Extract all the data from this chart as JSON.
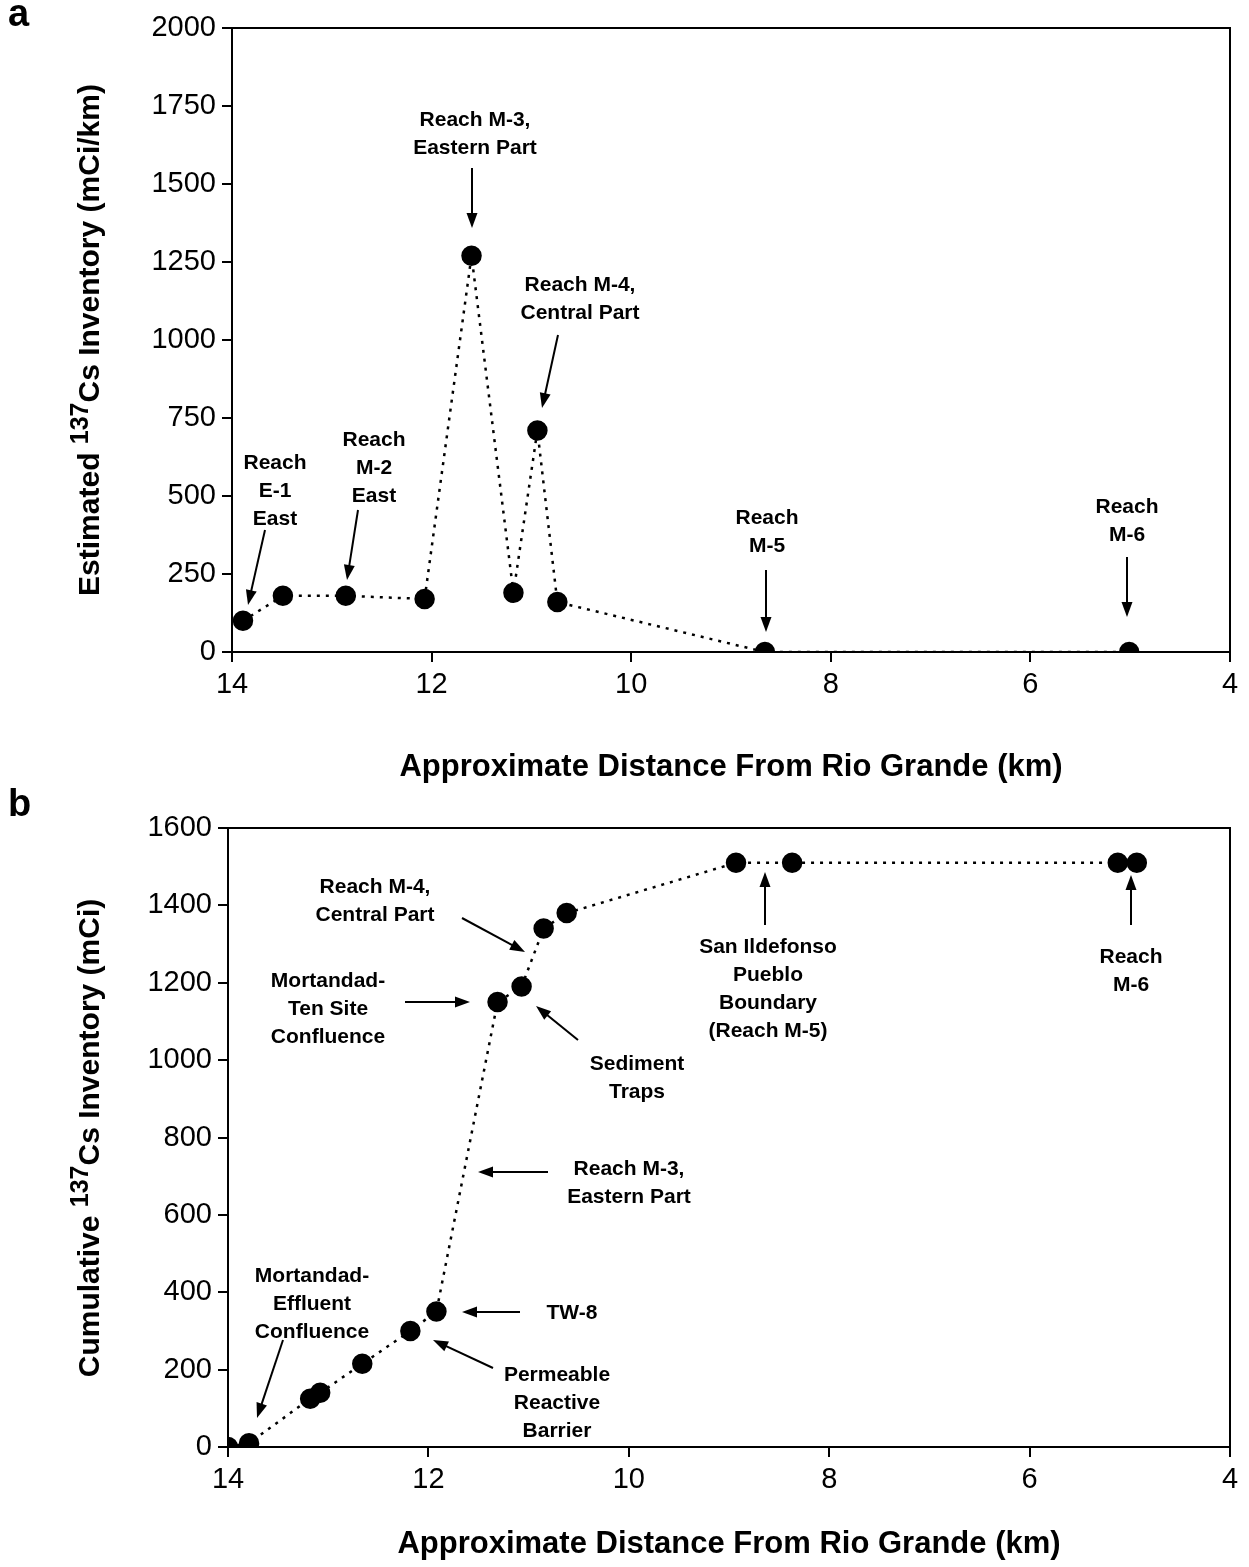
{
  "chart_data": [
    {
      "type": "line",
      "title": "a",
      "xlabel": "Approximate Distance From Rio Grande (km)",
      "ylabel": "Estimated $^{137}$Cs Inventory (mCi/km)",
      "x": [
        13.89,
        13.49,
        12.86,
        12.07,
        11.6,
        11.18,
        10.94,
        10.74,
        8.66,
        5.01
      ],
      "values": [
        100,
        180,
        180,
        170,
        1270,
        190,
        710,
        160,
        0,
        0
      ],
      "color": "#000000",
      "marker": "circle",
      "line_style": "dotted",
      "grid": false,
      "xlim": [
        14,
        4
      ],
      "xticks": [
        14,
        12,
        10,
        8,
        6,
        4
      ],
      "ylim": [
        0,
        2000
      ],
      "yticks": [
        0,
        250,
        500,
        750,
        1000,
        1250,
        1500,
        1750,
        2000
      ],
      "annotations": [
        "Reach\nE-1\nEast",
        "Reach\nM-2\nEast",
        "Reach M-3,\nEastern Part",
        "Reach M-4,\nCentral Part",
        "Reach\nM-5",
        "Reach\nM-6"
      ]
    },
    {
      "type": "line",
      "title": "b",
      "xlabel": "Approximate Distance From Rio Grande (km)",
      "ylabel": "Cumulative $^{137}$Cs Inventory (mCi)",
      "x": [
        14.0,
        13.79,
        13.18,
        13.08,
        12.66,
        12.18,
        11.92,
        11.31,
        11.07,
        10.85,
        10.62,
        8.93,
        8.37,
        5.12,
        4.93
      ],
      "values": [
        0,
        10,
        125,
        140,
        215,
        300,
        350,
        1150,
        1190,
        1340,
        1380,
        1510,
        1510,
        1510,
        1510
      ],
      "color": "#000000",
      "marker": "circle",
      "line_style": "dotted",
      "grid": false,
      "xlim": [
        14,
        4
      ],
      "xticks": [
        14,
        12,
        10,
        8,
        6,
        4
      ],
      "ylim": [
        0,
        1600
      ],
      "yticks": [
        0,
        200,
        400,
        600,
        800,
        1000,
        1200,
        1400,
        1600
      ],
      "annotations": [
        "Reach M-4,\nCentral Part",
        "Mortandad-\nTen Site\nConfluence",
        "Sediment\nTraps",
        "Reach M-3,\nEastern Part",
        "San Ildefonso\nPueblo\nBoundary\n(Reach M-5)",
        "Reach\nM-6",
        "TW-8",
        "Permeable\nReactive\nBarrier",
        "Mortandad-\nEffluent\nConfluence"
      ]
    }
  ]
}
